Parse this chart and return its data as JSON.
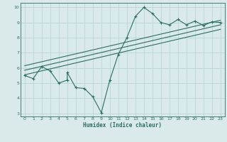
{
  "xlabel": "Humidex (Indice chaleur)",
  "bg_color": "#daeaea",
  "line_color": "#2a6e62",
  "grid_color": "#b8d8d8",
  "xlim": [
    -0.5,
    23.5
  ],
  "ylim": [
    2.8,
    10.3
  ],
  "xticks": [
    0,
    1,
    2,
    3,
    4,
    5,
    6,
    7,
    8,
    9,
    10,
    11,
    12,
    13,
    14,
    15,
    16,
    17,
    18,
    19,
    20,
    21,
    22,
    23
  ],
  "yticks": [
    3,
    4,
    5,
    6,
    7,
    8,
    9,
    10
  ],
  "curve1_x": [
    0,
    1,
    2,
    3,
    4,
    5,
    5,
    6,
    7,
    8,
    9,
    10,
    11,
    12,
    13,
    14,
    15,
    16,
    17,
    18,
    19,
    20,
    21,
    22,
    23
  ],
  "curve1_y": [
    5.5,
    5.3,
    6.1,
    5.8,
    5.0,
    5.2,
    5.7,
    4.7,
    4.65,
    4.1,
    3.05,
    5.2,
    6.9,
    8.0,
    9.4,
    10.0,
    9.6,
    9.0,
    8.85,
    9.2,
    8.85,
    9.1,
    8.8,
    9.05,
    9.0
  ],
  "line1_x": [
    0,
    23
  ],
  "line1_y": [
    5.55,
    8.55
  ],
  "line2_x": [
    0,
    23
  ],
  "line2_y": [
    5.85,
    8.85
  ],
  "line3_x": [
    0,
    23
  ],
  "line3_y": [
    6.15,
    9.15
  ]
}
